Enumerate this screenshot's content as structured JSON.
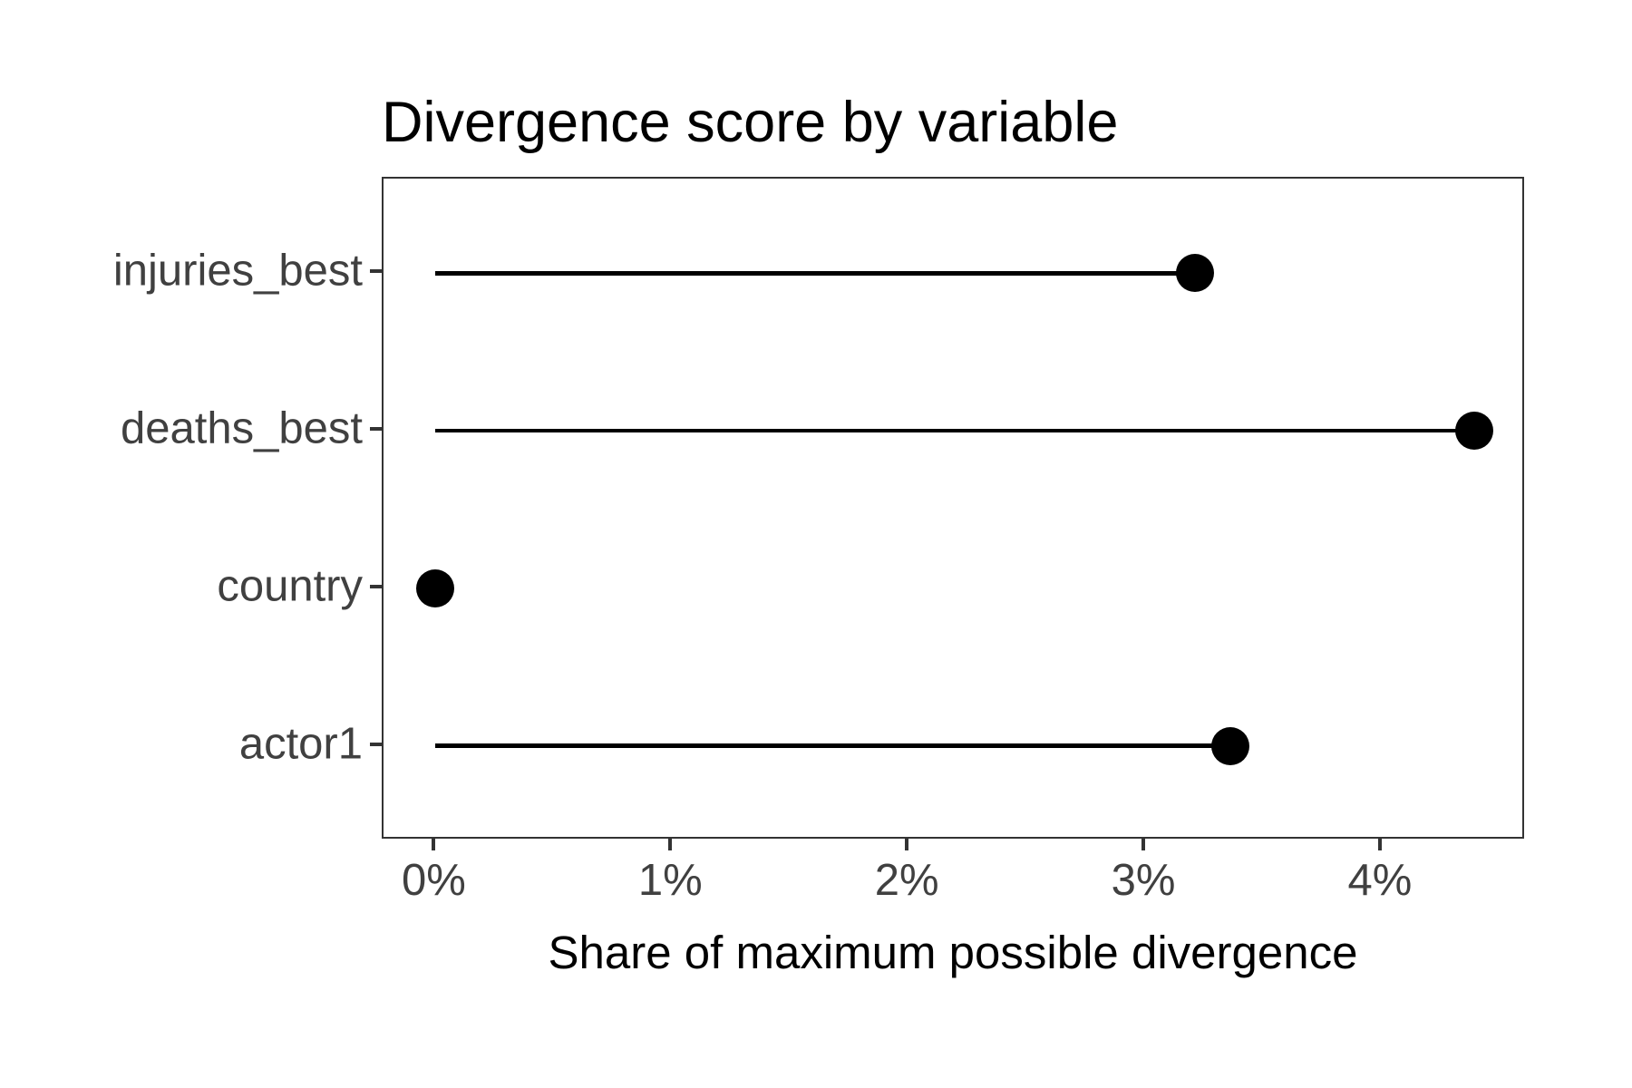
{
  "figure": {
    "title": "Divergence score by variable",
    "x_axis_title": "Share of maximum possible divergence"
  },
  "chart_data": {
    "type": "bar",
    "variant": "lollipop",
    "orientation": "horizontal",
    "title": "Divergence score by variable",
    "xlabel": "Share of maximum possible divergence",
    "ylabel": "",
    "categories": [
      "injuries_best",
      "deaths_best",
      "country",
      "actor1"
    ],
    "values": [
      3.21,
      4.39,
      0,
      3.36
    ],
    "value_unit": "percent",
    "xlim": [
      -0.22,
      4.61
    ],
    "x_ticks": [
      {
        "value": 0,
        "label": "0%"
      },
      {
        "value": 1,
        "label": "1%"
      },
      {
        "value": 2,
        "label": "2%"
      },
      {
        "value": 3,
        "label": "3%"
      },
      {
        "value": 4,
        "label": "4%"
      }
    ],
    "grid": false,
    "legend": false,
    "marker": "filled-circle"
  },
  "style": {
    "background": "#FFFFFF",
    "panel_border": "#333333",
    "stem_color": "#000000",
    "point_color": "#000000",
    "axis_text_color": "#404040",
    "tick_mark_color": "#333333",
    "title_color": "#000000",
    "axis_title_color": "#000000"
  }
}
